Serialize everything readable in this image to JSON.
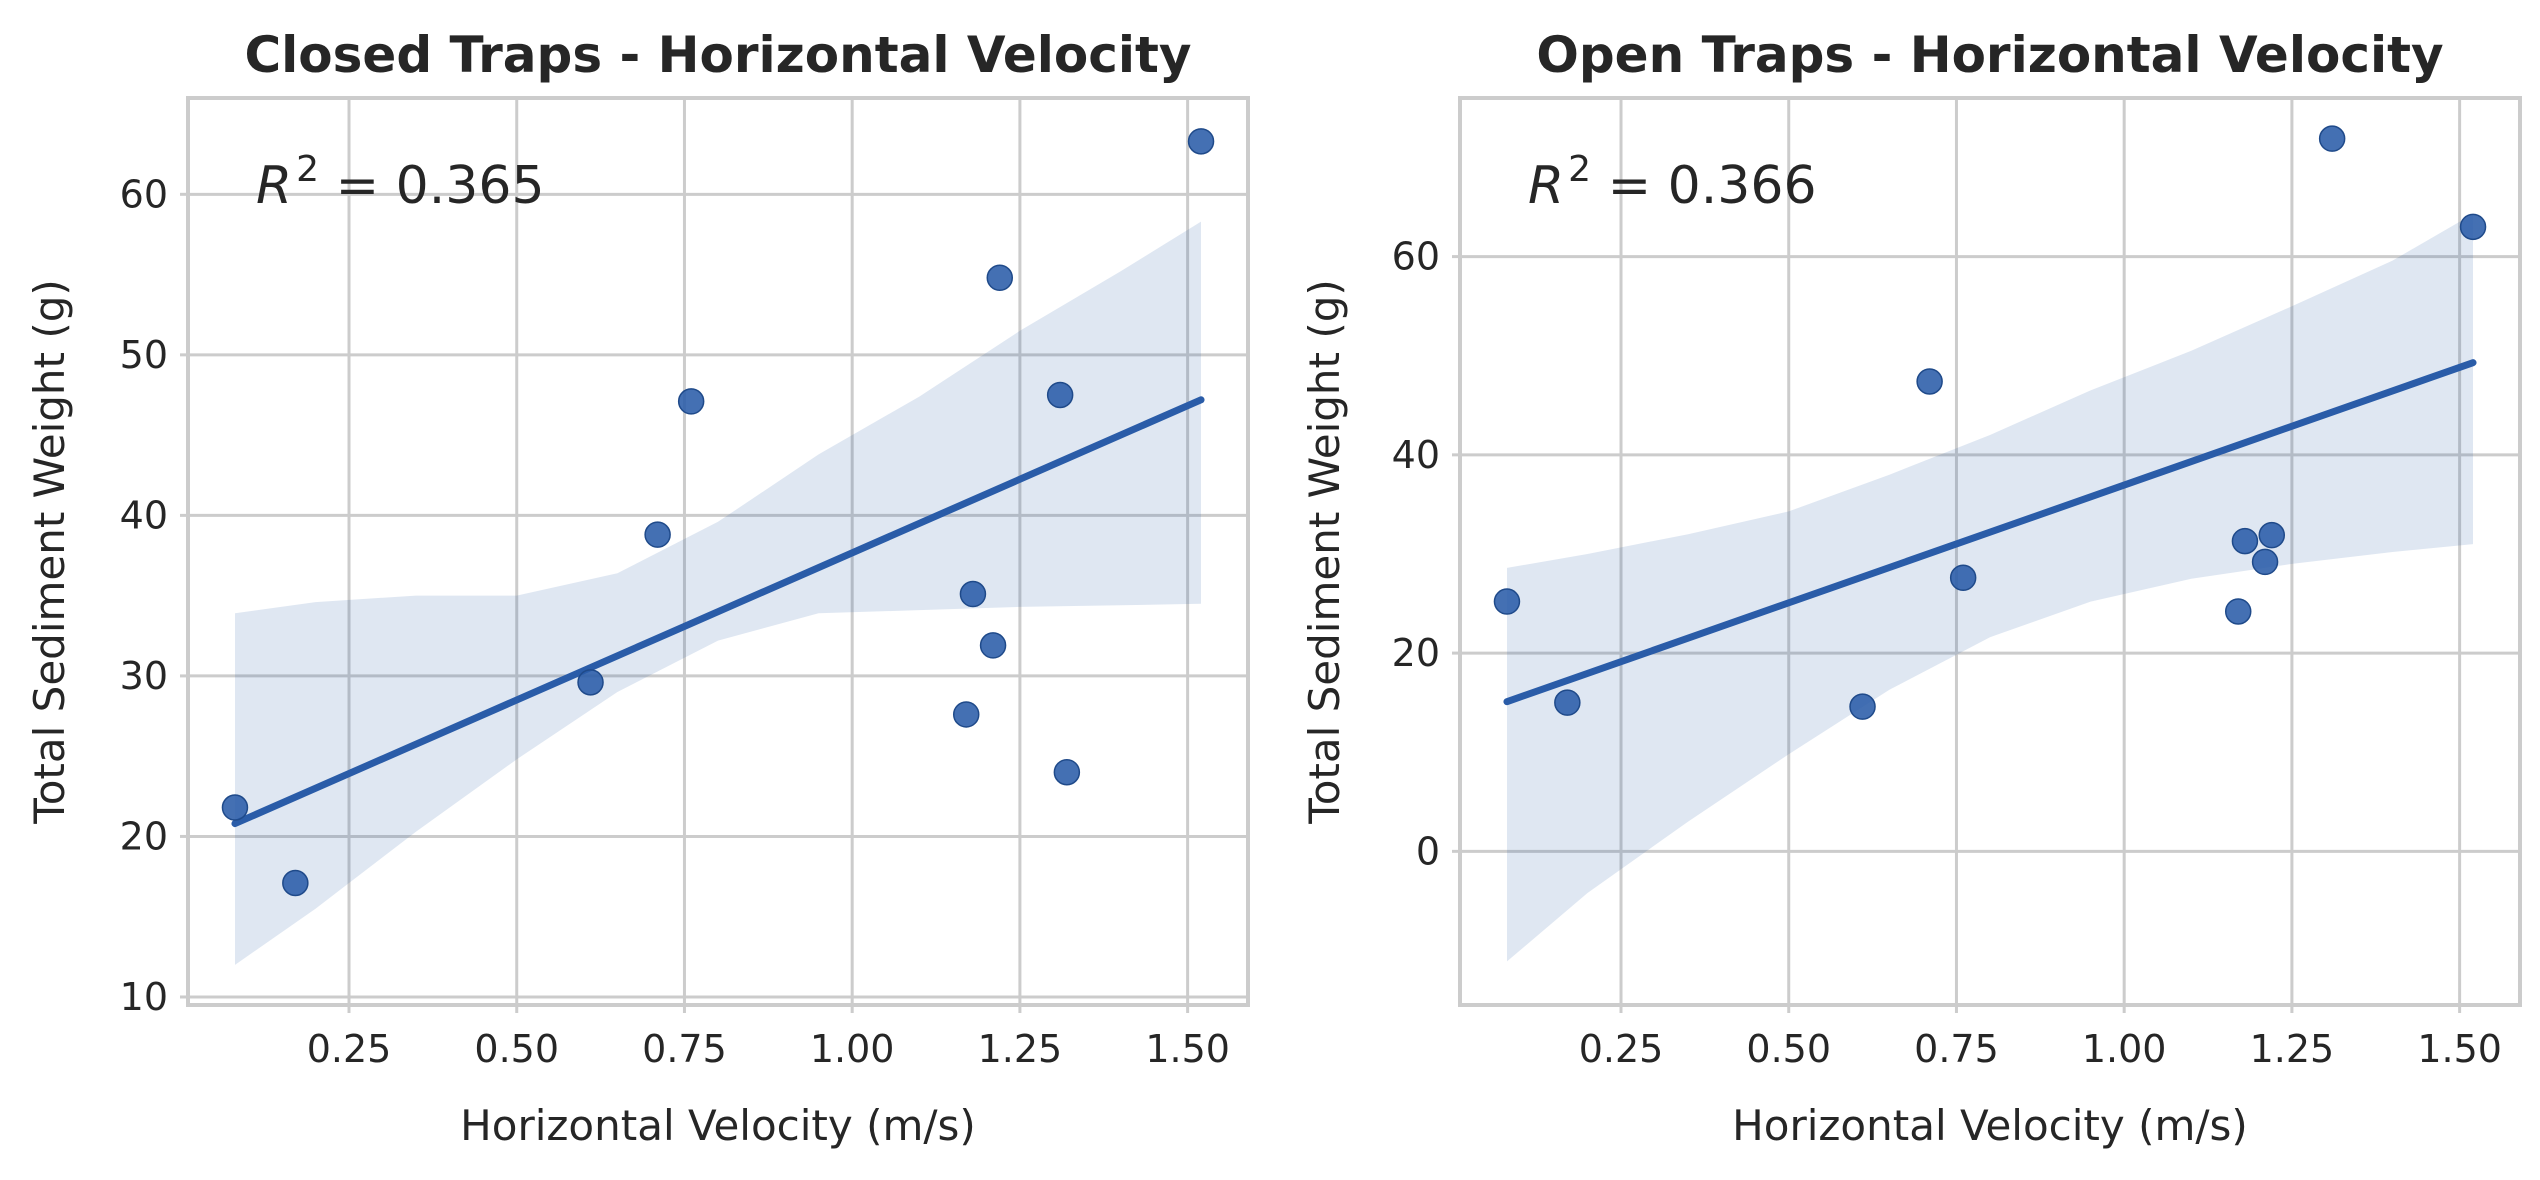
{
  "chart_data": [
    {
      "type": "scatter",
      "title": "Closed Traps - Horizontal Velocity",
      "xlabel": "Horizontal Velocity (m/s)",
      "ylabel": "Total Sediment Weight (g)",
      "annotation": {
        "symbol": "R",
        "exponent": "2",
        "text": " = 0.365"
      },
      "xlim": [
        0.01,
        1.59
      ],
      "ylim": [
        9.5,
        66
      ],
      "xticks": [
        0.25,
        0.5,
        0.75,
        1.0,
        1.25,
        1.5
      ],
      "xtick_labels": [
        "0.25",
        "0.50",
        "0.75",
        "1.00",
        "1.25",
        "1.50"
      ],
      "yticks": [
        10,
        20,
        30,
        40,
        50,
        60
      ],
      "ytick_labels": [
        "10",
        "20",
        "30",
        "40",
        "50",
        "60"
      ],
      "grid": true,
      "color": "#2a5ca8",
      "points": [
        {
          "x": 0.08,
          "y": 21.8
        },
        {
          "x": 0.17,
          "y": 17.1
        },
        {
          "x": 0.61,
          "y": 29.6
        },
        {
          "x": 0.71,
          "y": 38.8
        },
        {
          "x": 0.76,
          "y": 47.1
        },
        {
          "x": 1.17,
          "y": 27.6
        },
        {
          "x": 1.18,
          "y": 35.1
        },
        {
          "x": 1.21,
          "y": 31.9
        },
        {
          "x": 1.22,
          "y": 54.8
        },
        {
          "x": 1.31,
          "y": 47.5
        },
        {
          "x": 1.32,
          "y": 24.0
        },
        {
          "x": 1.52,
          "y": 63.3
        }
      ],
      "fit_line": {
        "x": [
          0.08,
          1.52
        ],
        "y": [
          20.8,
          47.2
        ]
      },
      "confidence_band": {
        "x": [
          0.08,
          0.2,
          0.35,
          0.5,
          0.65,
          0.8,
          0.95,
          1.1,
          1.25,
          1.4,
          1.52
        ],
        "lower": [
          12.0,
          15.5,
          20.3,
          24.8,
          29.0,
          32.2,
          33.9,
          34.1,
          34.3,
          34.4,
          34.5
        ],
        "upper": [
          33.9,
          34.6,
          35.0,
          35.0,
          36.4,
          39.6,
          43.8,
          47.4,
          51.5,
          55.2,
          58.3
        ]
      }
    },
    {
      "type": "scatter",
      "title": "Open Traps - Horizontal Velocity",
      "xlabel": "Horizontal Velocity (m/s)",
      "ylabel": "Total Sediment Weight (g)",
      "annotation": {
        "symbol": "R",
        "exponent": "2",
        "text": " = 0.366"
      },
      "xlim": [
        0.01,
        1.59
      ],
      "ylim": [
        -15.5,
        76
      ],
      "xticks": [
        0.25,
        0.5,
        0.75,
        1.0,
        1.25,
        1.5
      ],
      "xtick_labels": [
        "0.25",
        "0.50",
        "0.75",
        "1.00",
        "1.25",
        "1.50"
      ],
      "yticks": [
        0,
        20,
        40,
        60
      ],
      "ytick_labels": [
        "0",
        "20",
        "40",
        "60"
      ],
      "grid": true,
      "color": "#2a5ca8",
      "points": [
        {
          "x": 0.08,
          "y": 25.2
        },
        {
          "x": 0.17,
          "y": 15.0
        },
        {
          "x": 0.61,
          "y": 14.6
        },
        {
          "x": 0.71,
          "y": 47.4
        },
        {
          "x": 0.76,
          "y": 27.6
        },
        {
          "x": 1.17,
          "y": 24.2
        },
        {
          "x": 1.18,
          "y": 31.3
        },
        {
          "x": 1.21,
          "y": 29.2
        },
        {
          "x": 1.22,
          "y": 31.9
        },
        {
          "x": 1.31,
          "y": 71.9
        },
        {
          "x": 1.52,
          "y": 63.0
        }
      ],
      "fit_line": {
        "x": [
          0.08,
          1.52
        ],
        "y": [
          15.1,
          49.3
        ]
      },
      "confidence_band": {
        "x": [
          0.08,
          0.2,
          0.35,
          0.5,
          0.65,
          0.8,
          0.95,
          1.1,
          1.25,
          1.4,
          1.52
        ],
        "lower": [
          -11.1,
          -4.2,
          3.0,
          9.8,
          16.3,
          21.6,
          25.2,
          27.5,
          29.0,
          30.2,
          31.0
        ],
        "upper": [
          28.6,
          30.0,
          32.0,
          34.3,
          38.0,
          42.0,
          46.5,
          50.5,
          55.0,
          59.6,
          64.3
        ]
      }
    }
  ]
}
